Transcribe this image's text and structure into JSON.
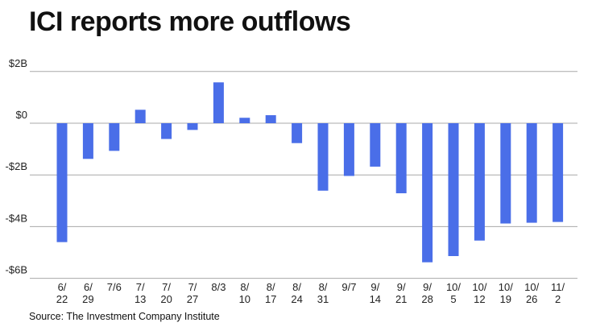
{
  "chart_data": {
    "type": "bar",
    "title": "ICI reports more outflows",
    "source": "Source: The Investment Company Institute",
    "xlabel": "",
    "ylabel": "",
    "ylim": [
      -6,
      2
    ],
    "yticks": [
      2,
      0,
      -2,
      -4,
      -6
    ],
    "ytick_labels": [
      "$2B",
      "$0",
      "-$2B",
      "-$4B",
      "-$6B"
    ],
    "grid": true,
    "bar_color": "#4a6ee8",
    "categories": [
      "6/22",
      "6/29",
      "7/6",
      "7/13",
      "7/20",
      "7/27",
      "8/3",
      "8/10",
      "8/17",
      "8/24",
      "8/31",
      "9/7",
      "9/14",
      "9/21",
      "9/28",
      "10/5",
      "10/12",
      "10/19",
      "10/26",
      "11/2"
    ],
    "category_label_lines": [
      [
        "6/",
        "22"
      ],
      [
        "6/",
        "29"
      ],
      [
        "7/6"
      ],
      [
        "7/",
        "13"
      ],
      [
        "7/",
        "20"
      ],
      [
        "7/",
        "27"
      ],
      [
        "8/3"
      ],
      [
        "8/",
        "10"
      ],
      [
        "8/",
        "17"
      ],
      [
        "8/",
        "24"
      ],
      [
        "8/",
        "31"
      ],
      [
        "9/7"
      ],
      [
        "9/",
        "14"
      ],
      [
        "9/",
        "21"
      ],
      [
        "9/",
        "28"
      ],
      [
        "10/",
        "5"
      ],
      [
        "10/",
        "12"
      ],
      [
        "10/",
        "19"
      ],
      [
        "10/",
        "26"
      ],
      [
        "11/",
        "2"
      ]
    ],
    "values": [
      -4.6,
      -1.38,
      -1.07,
      0.52,
      -0.61,
      -0.26,
      1.58,
      0.21,
      0.31,
      -0.77,
      -2.61,
      -2.04,
      -1.68,
      -2.71,
      -5.38,
      -5.14,
      -4.54,
      -3.88,
      -3.85,
      -3.82
    ]
  }
}
